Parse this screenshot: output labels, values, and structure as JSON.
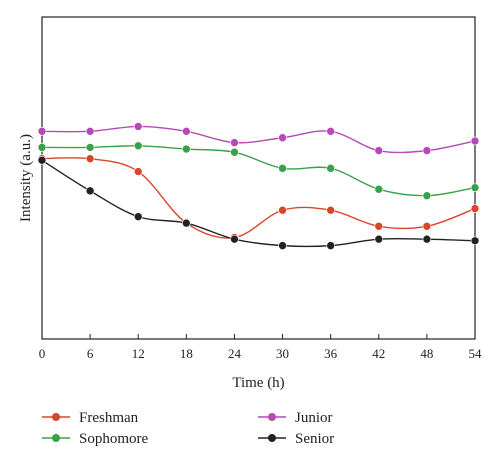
{
  "chart_data": {
    "type": "line",
    "xlabel": "Time (h)",
    "ylabel": "Intensity (a.u.)",
    "x": [
      0,
      6,
      12,
      18,
      24,
      30,
      36,
      42,
      48,
      54
    ],
    "xlim": [
      0,
      54
    ],
    "ylim": [
      0,
      100
    ],
    "grid": false,
    "legend_position": "bottom",
    "series": [
      {
        "name": "Freshman",
        "color": "#d9452b",
        "values": [
          56,
          56,
          52,
          36,
          31.5,
          40,
          40,
          35,
          35,
          40.5
        ]
      },
      {
        "name": "Sophomore",
        "color": "#3aa14a",
        "values": [
          59.5,
          59.5,
          60,
          59,
          58,
          53,
          53,
          46.5,
          44.5,
          47
        ]
      },
      {
        "name": "Junior",
        "color": "#b34bb3",
        "values": [
          64.5,
          64.5,
          66,
          64.5,
          61,
          62.5,
          64.5,
          58.5,
          58.5,
          61.5
        ]
      },
      {
        "name": "Senior",
        "color": "#222222",
        "values": [
          55.5,
          46,
          38,
          36,
          31,
          29,
          29,
          31,
          31,
          30.5
        ]
      }
    ]
  }
}
